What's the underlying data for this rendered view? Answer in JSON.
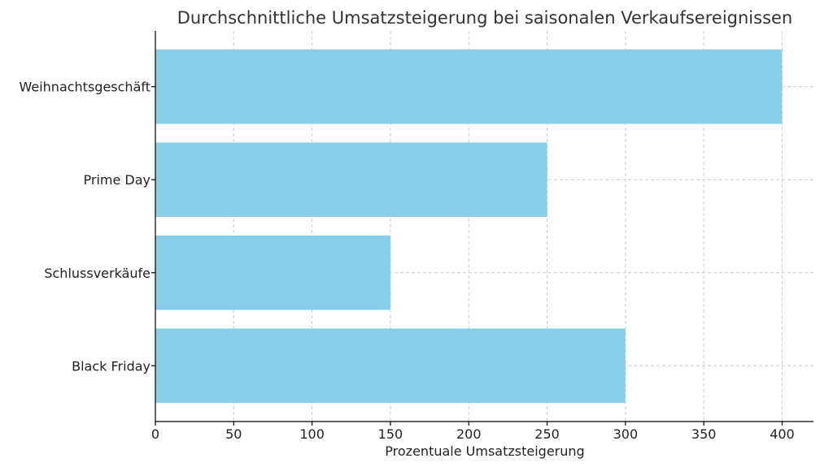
{
  "chart_data": {
    "type": "bar",
    "orientation": "horizontal",
    "title": "Durchschnittliche Umsatzsteigerung bei saisonalen Verkaufsereignissen",
    "xlabel": "Prozentuale Umsatzsteigerung",
    "ylabel": "",
    "categories": [
      "Black Friday",
      "Schlussverkäufe",
      "Prime Day",
      "Weihnachtsgeschäft"
    ],
    "values": [
      300,
      150,
      250,
      400
    ],
    "xlim": [
      0,
      420
    ],
    "xticks": [
      0,
      50,
      100,
      150,
      200,
      250,
      300,
      350,
      400
    ],
    "xtick_labels": [
      "0",
      "50",
      "100",
      "150",
      "200",
      "250",
      "300",
      "350",
      "400"
    ],
    "grid": true,
    "bar_color": "#87CEEB"
  }
}
